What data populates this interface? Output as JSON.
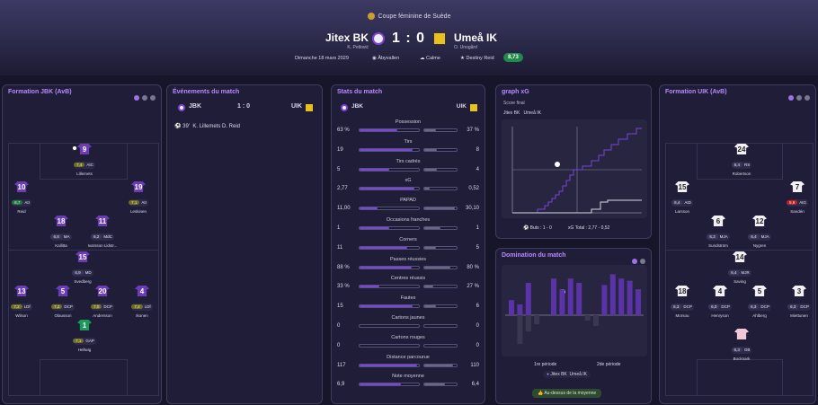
{
  "header": {
    "competition": "Coupe féminine de Suède",
    "home": {
      "name": "Jitex BK",
      "manager": "K. Petlović"
    },
    "away": {
      "name": "Umeå IK",
      "manager": "O. Unogård"
    },
    "score": "1 : 0",
    "date": "Dimanche 18 mars 2029",
    "stadium": "Åbyvallen",
    "weather": "Calme",
    "potm": "Destiny Reid",
    "potm_rating": "8,73"
  },
  "formation_home": {
    "title": "Formation JBK (AvB)",
    "players": [
      {
        "num": "9",
        "rating": "7,4",
        "pos": "AtC",
        "name": "Lillemets",
        "cls": "y",
        "ball": true
      },
      {
        "num": "10",
        "rating": "8,7",
        "pos": "AtI",
        "name": "Reid",
        "cls": "g"
      },
      {
        "num": "19",
        "rating": "7,1",
        "pos": "AtI",
        "name": "Leskinen",
        "cls": "y"
      },
      {
        "num": "18",
        "rating": "6,8",
        "pos": "MA",
        "name": "Kallitta",
        "cls": ""
      },
      {
        "num": "11",
        "rating": "6,2",
        "pos": "MdC",
        "name": "Ivarsson Lidstr...",
        "cls": ""
      },
      {
        "num": "15",
        "rating": "6,9",
        "pos": "MD",
        "name": "Svedberg",
        "cls": ""
      },
      {
        "num": "13",
        "rating": "7,2",
        "pos": "LDf",
        "name": "Wilson",
        "cls": "y"
      },
      {
        "num": "5",
        "rating": "7,2",
        "pos": "DCP",
        "name": "Olausson",
        "cls": "y"
      },
      {
        "num": "20",
        "rating": "7,0",
        "pos": "DCP",
        "name": "Andersson",
        "cls": "y"
      },
      {
        "num": "4",
        "rating": "7,2",
        "pos": "LDf",
        "name": "Ikonen",
        "cls": "y"
      },
      {
        "num": "1",
        "rating": "7,1",
        "pos": "GAP",
        "name": "Hellwig",
        "cls": "y",
        "gk": true
      }
    ]
  },
  "events": {
    "title": "Événements du match",
    "home": "JBK",
    "away": "UIK",
    "score": "1 : 0",
    "items": [
      {
        "minute": "39'",
        "text": "K. Lillemets  D. Reid"
      }
    ]
  },
  "stats": {
    "title": "Stats du match",
    "home": "JBK",
    "away": "UIK",
    "rows": [
      {
        "label": "Possession",
        "h": "63 %",
        "a": "37 %",
        "hv": 0.63,
        "av": 0.37
      },
      {
        "label": "Tirs",
        "h": "19",
        "a": "8",
        "hv": 0.9,
        "av": 0.4
      },
      {
        "label": "Tirs cadrés",
        "h": "5",
        "a": "4",
        "hv": 0.5,
        "av": 0.4
      },
      {
        "label": "xG",
        "h": "2,77",
        "a": "0,52",
        "hv": 0.92,
        "av": 0.18
      },
      {
        "label": "PAPAD",
        "h": "11,00",
        "a": "30,10",
        "hv": 0.3,
        "av": 0.95
      },
      {
        "label": "Occasions franches",
        "h": "1",
        "a": "1",
        "hv": 0.5,
        "av": 0.5
      },
      {
        "label": "Corners",
        "h": "11",
        "a": "5",
        "hv": 0.8,
        "av": 0.35
      },
      {
        "label": "Passes réussies",
        "h": "88 %",
        "a": "80 %",
        "hv": 0.88,
        "av": 0.8
      },
      {
        "label": "Centres réussis",
        "h": "33 %",
        "a": "27 %",
        "hv": 0.33,
        "av": 0.27
      },
      {
        "label": "Fautes",
        "h": "15",
        "a": "6",
        "hv": 0.9,
        "av": 0.35
      },
      {
        "label": "Cartons jaunes",
        "h": "0",
        "a": "0",
        "hv": 0,
        "av": 0
      },
      {
        "label": "Cartons rouges",
        "h": "0",
        "a": "0",
        "hv": 0,
        "av": 0
      },
      {
        "label": "Distance parcourue",
        "h": "117",
        "a": "110",
        "hv": 0.97,
        "av": 0.9
      },
      {
        "label": "Note moyenne",
        "h": "6,9",
        "a": "6,4",
        "hv": 0.69,
        "av": 0.64
      }
    ]
  },
  "xg": {
    "title": "graph xG",
    "subtitle": "Score final",
    "legend_home": "Jitex BK",
    "legend_away": "Umeå IK",
    "goals_label": "Buts : 1 - 0",
    "xg_label": "xG  Total :  2,77  -  0,52"
  },
  "domination": {
    "title": "Domination du match",
    "half1": "1re période",
    "half2": "2de période",
    "legend_home": "Jitex BK",
    "legend_away": "Umeå IK",
    "above": "Au-dessus de la moyenne",
    "home_vals": [
      0.35,
      0.25,
      0.75,
      0,
      0,
      0.85,
      0.6,
      0.85,
      0.75,
      0,
      0,
      0.7,
      0.95,
      0.85,
      0.8,
      0.6
    ],
    "away_vals": [
      0,
      0.8,
      0.45,
      0.25,
      0,
      0,
      0,
      0,
      0,
      0.15,
      0.3,
      0,
      0,
      0,
      0,
      0
    ]
  },
  "formation_away": {
    "title": "Formation UIK (AvB)",
    "players": [
      {
        "num": "24",
        "rating": "6,4",
        "pos": "RS",
        "name": "Robertson",
        "cls": "",
        "shirt": "wh"
      },
      {
        "num": "15",
        "rating": "6,4",
        "pos": "AtD",
        "name": "Larsson",
        "cls": "",
        "shirt": "wh"
      },
      {
        "num": "7",
        "rating": "5,9",
        "pos": "AtG",
        "name": "Sandén",
        "cls": "r",
        "shirt": "wh"
      },
      {
        "num": "6",
        "rating": "6,3",
        "pos": "MJA",
        "name": "Sundström",
        "cls": "",
        "shirt": "wh"
      },
      {
        "num": "12",
        "rating": "6,4",
        "pos": "MJA",
        "name": "Nygren",
        "cls": "",
        "shirt": "wh"
      },
      {
        "num": "14",
        "rating": "6,4",
        "pos": "MJR",
        "name": "Saving",
        "cls": "",
        "shirt": "wh"
      },
      {
        "num": "18",
        "rating": "6,3",
        "pos": "DCP",
        "name": "Morsou",
        "cls": "",
        "shirt": "wh"
      },
      {
        "num": "4",
        "rating": "6,0",
        "pos": "DCP",
        "name": "Henryson",
        "cls": "",
        "shirt": "wh"
      },
      {
        "num": "5",
        "rating": "6,3",
        "pos": "DCP",
        "name": "Ahlberg",
        "cls": "",
        "shirt": "wh"
      },
      {
        "num": "3",
        "rating": "6,3",
        "pos": "DCP",
        "name": "Miettunen",
        "cls": "",
        "shirt": "wh"
      },
      {
        "num": "",
        "rating": "6,3",
        "pos": "GB",
        "name": "Bocknark",
        "cls": "",
        "shirt": "gk2"
      }
    ]
  },
  "colors": {
    "accent": "#a070f0",
    "home": "#7a45d8",
    "away": "#6a6880"
  }
}
